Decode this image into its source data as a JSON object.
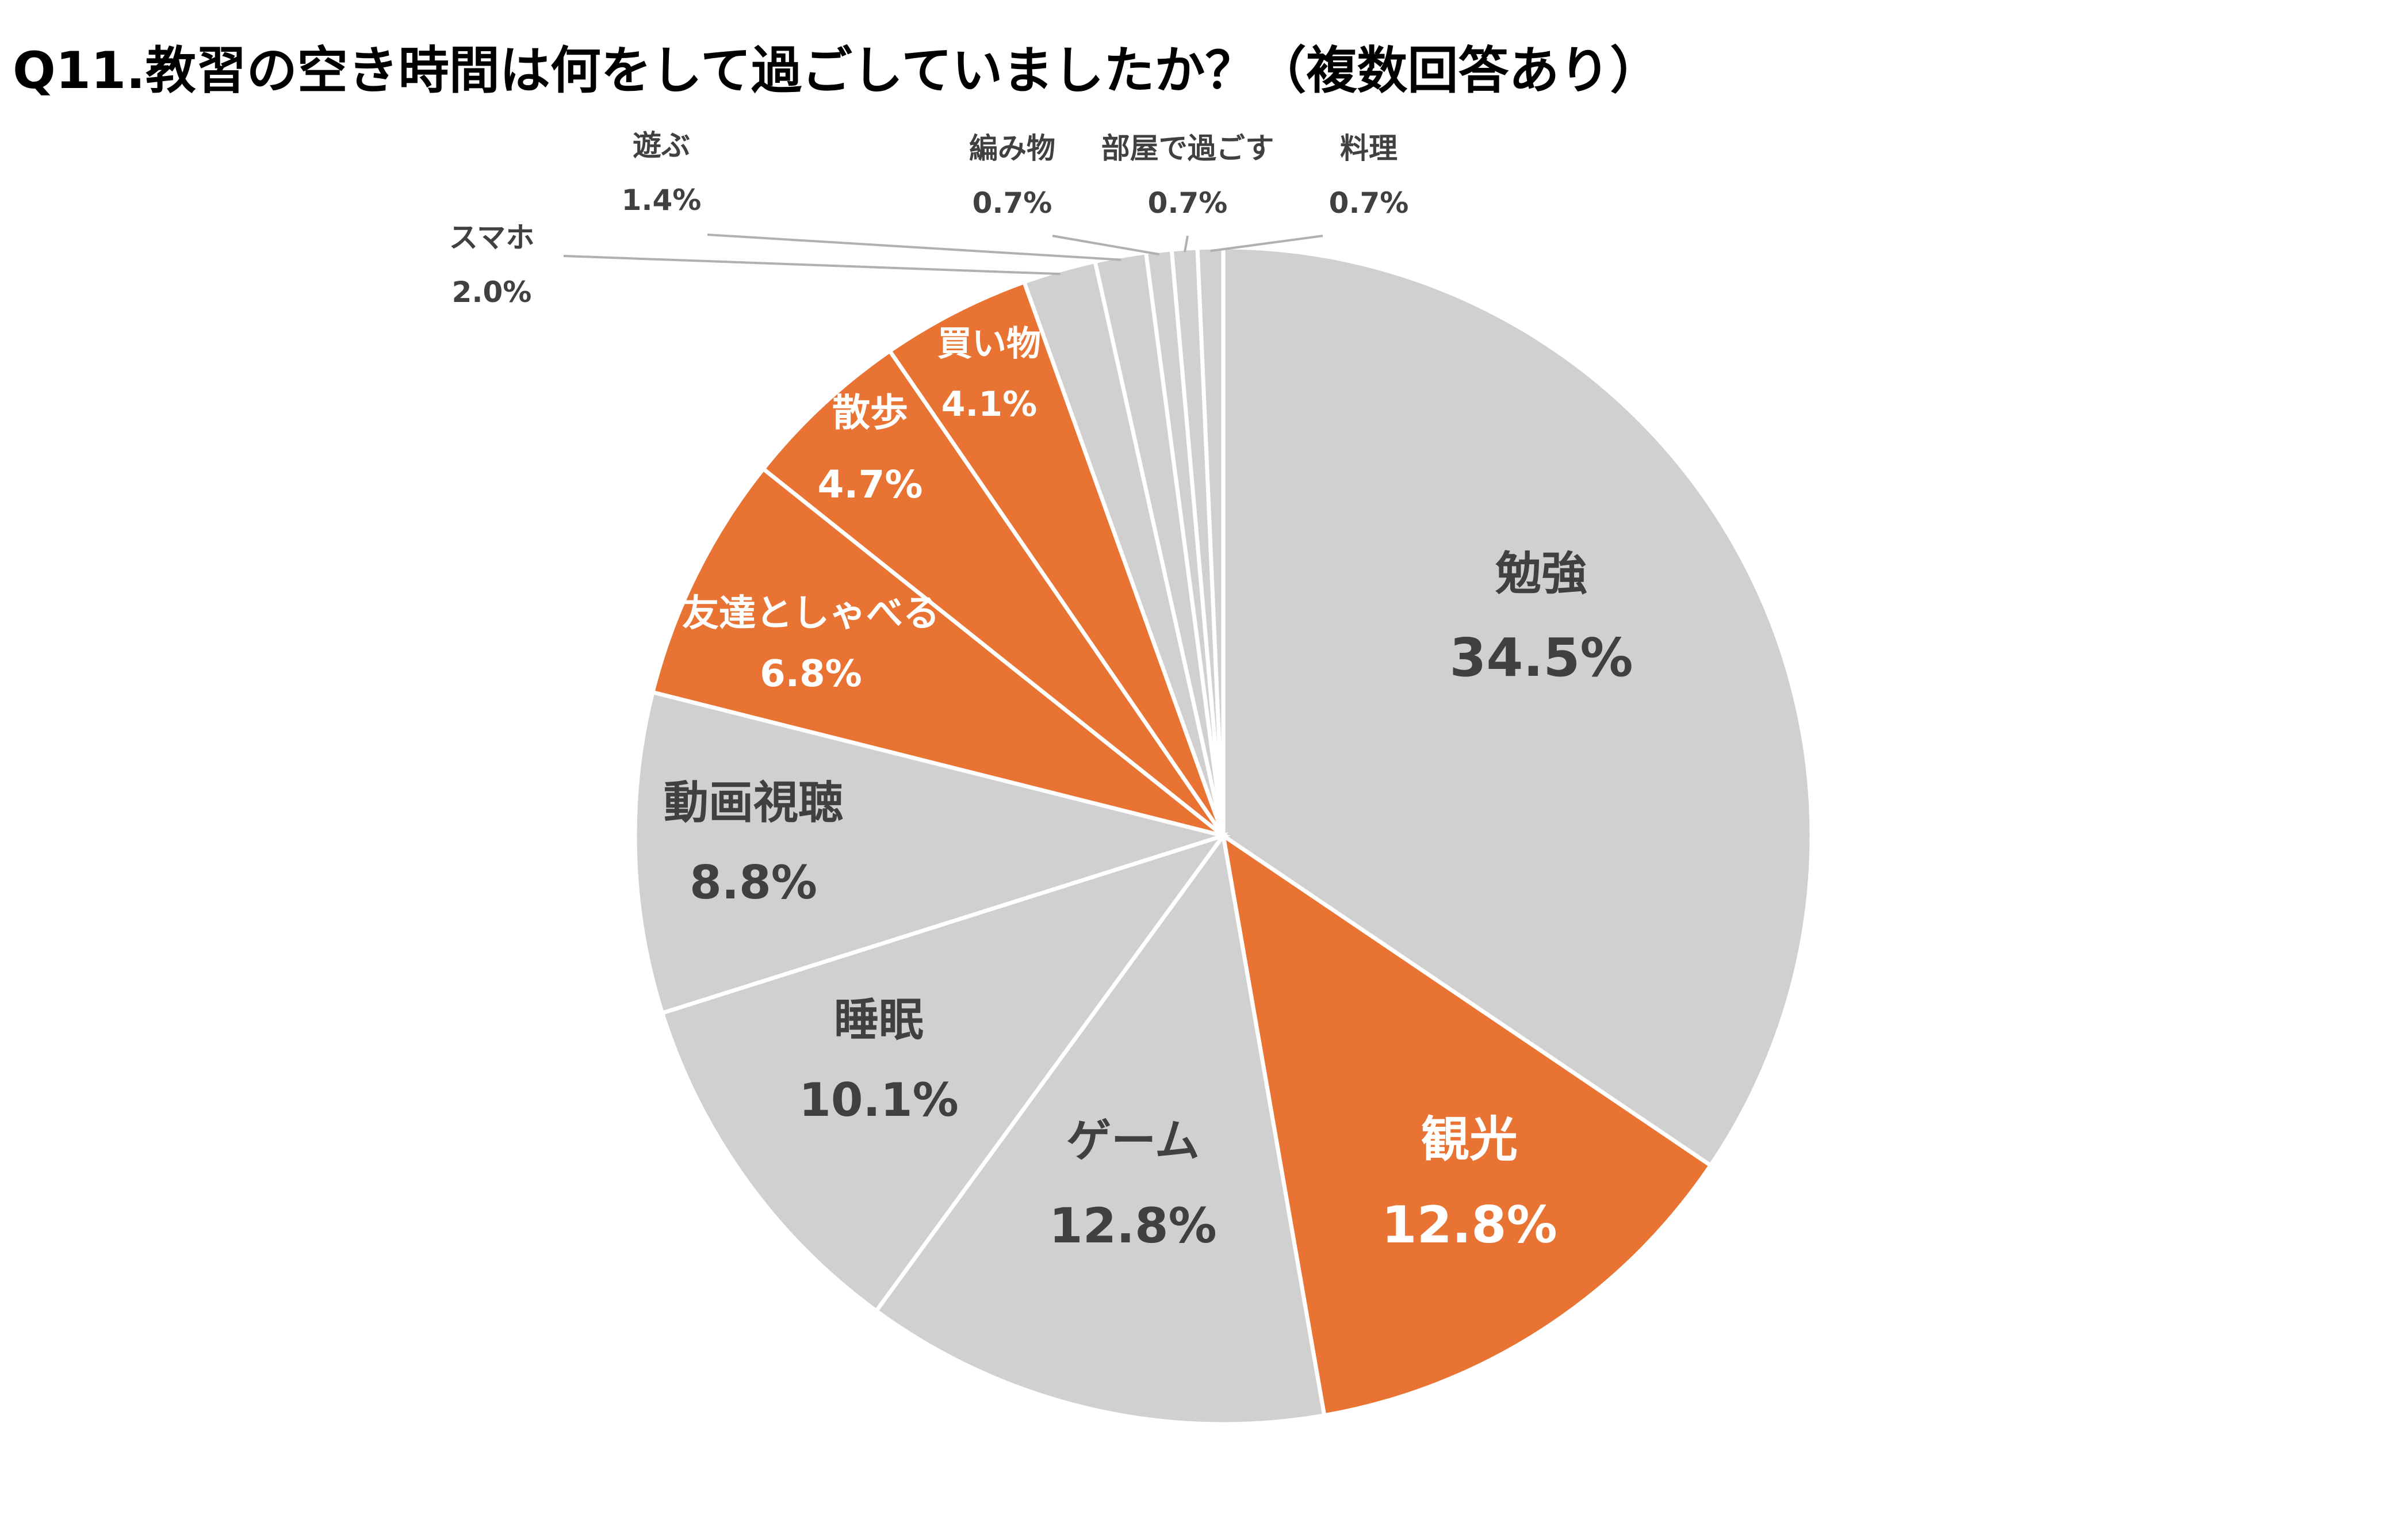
{
  "chart_data": {
    "type": "pie",
    "title": "Q11.教習の空き時間は何をして過ごしていましたか？（複数回答あり）",
    "slices": [
      {
        "label": "勉強",
        "value": 34.5,
        "value_label": "34.5%",
        "color": "#d0d0d0"
      },
      {
        "label": "観光",
        "value": 12.8,
        "value_label": "12.8%",
        "color": "#e97332"
      },
      {
        "label": "ゲーム",
        "value": 12.8,
        "value_label": "12.8%",
        "color": "#d0d0d0"
      },
      {
        "label": "睡眠",
        "value": 10.1,
        "value_label": "10.1%",
        "color": "#d0d0d0"
      },
      {
        "label": "動画視聴",
        "value": 8.8,
        "value_label": "8.8%",
        "color": "#d0d0d0"
      },
      {
        "label": "友達としゃべる",
        "value": 6.8,
        "value_label": "6.8%",
        "color": "#e97332"
      },
      {
        "label": "散歩",
        "value": 4.7,
        "value_label": "4.7%",
        "color": "#e97332"
      },
      {
        "label": "買い物",
        "value": 4.1,
        "value_label": "4.1%",
        "color": "#e97332"
      },
      {
        "label": "スマホ",
        "value": 2.0,
        "value_label": "2.0%",
        "color": "#d0d0d0"
      },
      {
        "label": "遊ぶ",
        "value": 1.4,
        "value_label": "1.4%",
        "color": "#d0d0d0"
      },
      {
        "label": "編み物",
        "value": 0.7,
        "value_label": "0.7%",
        "color": "#d0d0d0"
      },
      {
        "label": "部屋で過ごす",
        "value": 0.7,
        "value_label": "0.7%",
        "color": "#d0d0d0"
      },
      {
        "label": "料理",
        "value": 0.7,
        "value_label": "0.7%",
        "color": "#d0d0d0"
      }
    ],
    "start_angle": "12 o'clock",
    "direction": "clockwise",
    "legend": "none"
  }
}
